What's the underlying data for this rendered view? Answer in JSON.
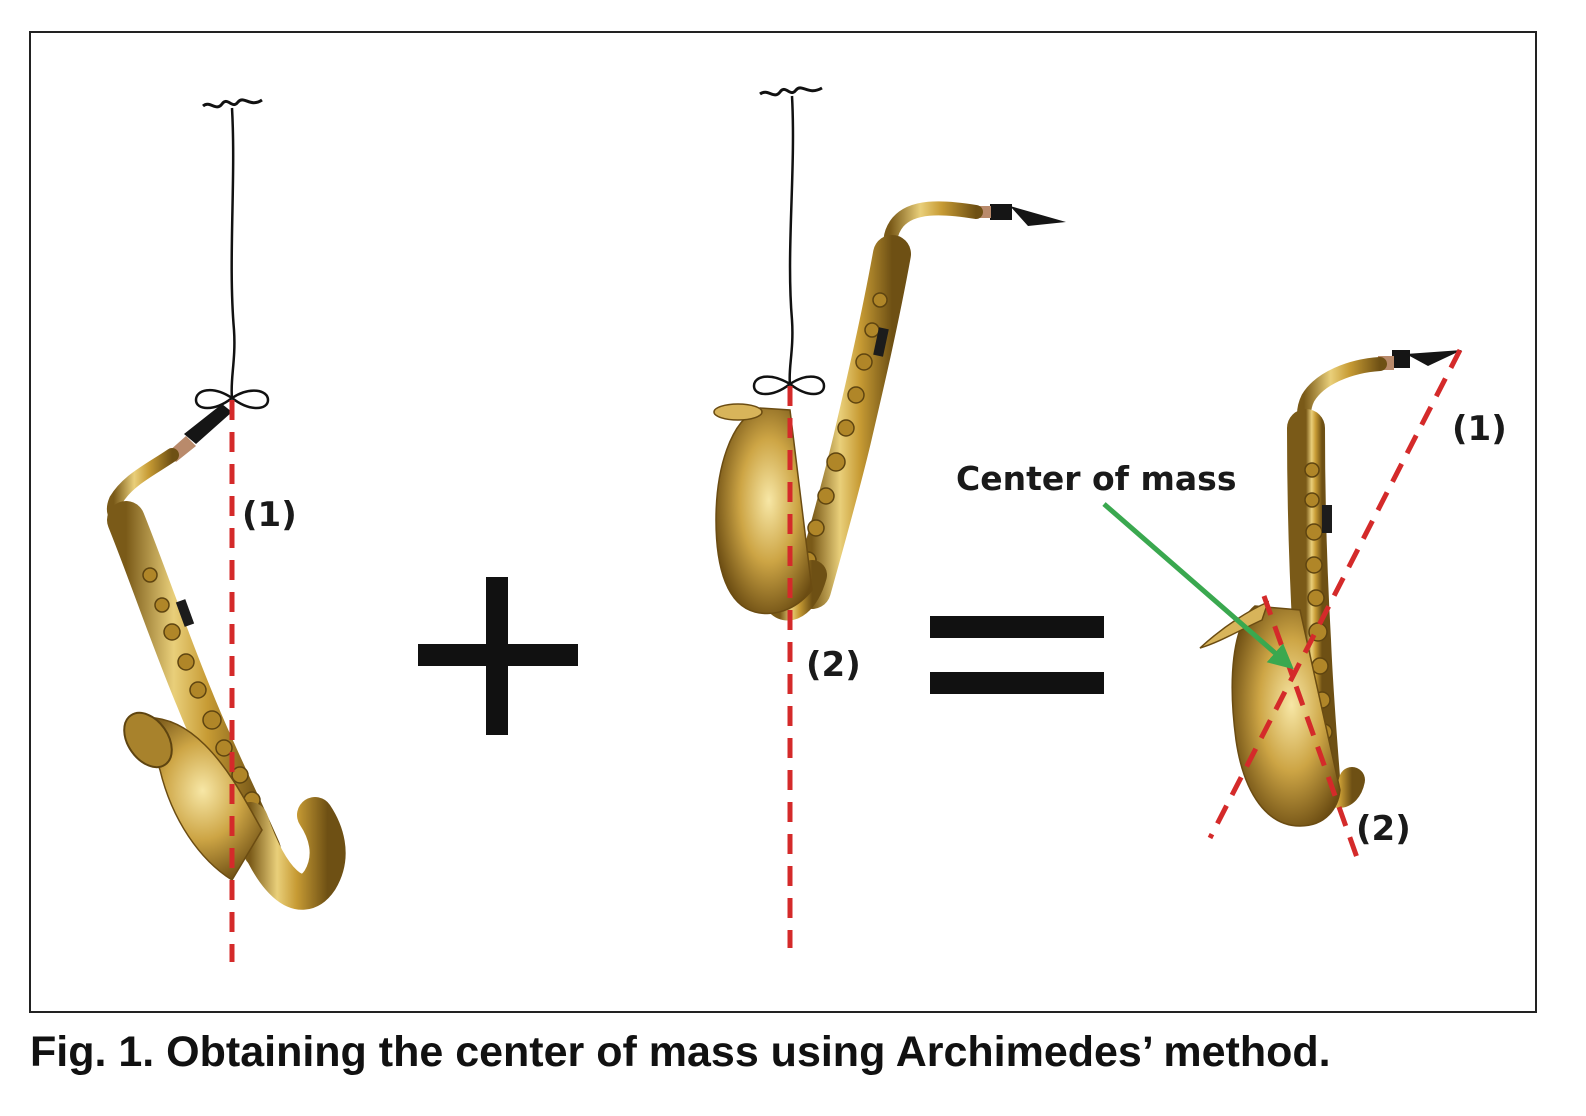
{
  "labels": {
    "panel1_line": "(1)",
    "panel2_line": "(2)",
    "panel3_line1": "(1)",
    "panel3_line2": "(2)",
    "center_of_mass": "Center of mass"
  },
  "caption": "Fig. 1. Obtaining the center of mass using Archimedes’ method.",
  "colors": {
    "plumb_line": "#d42a2a",
    "arrow": "#3aa84f",
    "operator": "#111111",
    "brass": "#c9a545"
  },
  "icons": {
    "operator_plus": "plus-sign",
    "operator_equals": "equals-sign",
    "hanger": "hook-icon"
  }
}
